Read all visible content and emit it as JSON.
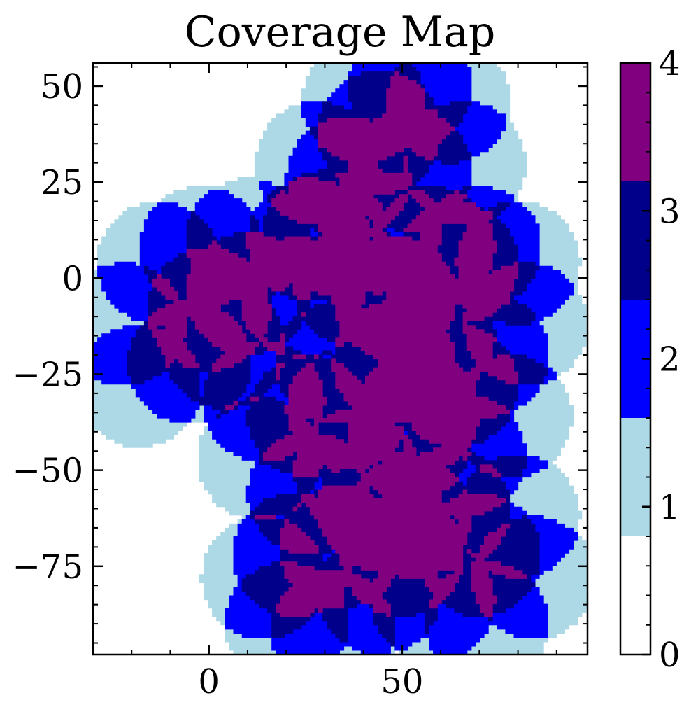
{
  "chart_data": {
    "type": "heatmap",
    "title": "Coverage Map",
    "xlabel": "",
    "ylabel": "",
    "xlim": [
      -30,
      98
    ],
    "ylim": [
      -98,
      56
    ],
    "x_ticks": [
      0,
      50
    ],
    "x_tick_labels": [
      "0",
      "50"
    ],
    "y_ticks": [
      50,
      25,
      0,
      -25,
      -50,
      -75
    ],
    "y_tick_labels": [
      "50",
      "25",
      "0",
      "−25",
      "−50",
      "−75"
    ],
    "grid": false,
    "colorbar": {
      "min": 0,
      "max": 4,
      "ticks": [
        0,
        1,
        2,
        3,
        4
      ],
      "tick_labels": [
        "0",
        "1",
        "2",
        "3",
        "4"
      ],
      "levels": [
        {
          "value": 0,
          "color": "#ffffff"
        },
        {
          "value": 1,
          "color": "#add8e6"
        },
        {
          "value": 2,
          "color": "#0000ff"
        },
        {
          "value": 3,
          "color": "#00008b"
        },
        {
          "value": 4,
          "color": "#800080"
        }
      ]
    },
    "sensor_radius": 16,
    "sensors": [
      [
        -13,
        4
      ],
      [
        -22,
        -12
      ],
      [
        -18,
        -28
      ],
      [
        -5,
        -22
      ],
      [
        4,
        -18
      ],
      [
        10,
        -4
      ],
      [
        24,
        -5
      ],
      [
        -2,
        8
      ],
      [
        0,
        -8
      ],
      [
        33,
        -22
      ],
      [
        38,
        -2
      ],
      [
        48,
        -5
      ],
      [
        58,
        -15
      ],
      [
        64,
        4
      ],
      [
        80,
        4
      ],
      [
        82,
        -12
      ],
      [
        72,
        -20
      ],
      [
        64,
        -28
      ],
      [
        54,
        -35
      ],
      [
        48,
        -22
      ],
      [
        36,
        -34
      ],
      [
        26,
        -36
      ],
      [
        14,
        -32
      ],
      [
        13,
        -47
      ],
      [
        26,
        -56
      ],
      [
        38,
        -50
      ],
      [
        52,
        -42
      ],
      [
        66,
        -46
      ],
      [
        52,
        -62
      ],
      [
        34,
        -70
      ],
      [
        22,
        -72
      ],
      [
        14,
        -78
      ],
      [
        20,
        -90
      ],
      [
        32,
        -92
      ],
      [
        44,
        -82
      ],
      [
        58,
        -84
      ],
      [
        70,
        -72
      ],
      [
        80,
        -62
      ],
      [
        84,
        -78
      ],
      [
        72,
        -90
      ],
      [
        62,
        -60
      ],
      [
        50,
        -72
      ],
      [
        44,
        -60
      ],
      [
        30,
        12
      ],
      [
        44,
        12
      ],
      [
        58,
        8
      ],
      [
        52,
        28
      ],
      [
        44,
        38
      ],
      [
        36,
        26
      ],
      [
        28,
        30
      ],
      [
        40,
        46
      ],
      [
        52,
        50
      ],
      [
        62,
        46
      ],
      [
        66,
        30
      ],
      [
        48,
        -5
      ],
      [
        26,
        10
      ],
      [
        10,
        10
      ],
      [
        70,
        8
      ],
      [
        78,
        -36
      ]
    ],
    "grid_resolution": 1.1
  }
}
